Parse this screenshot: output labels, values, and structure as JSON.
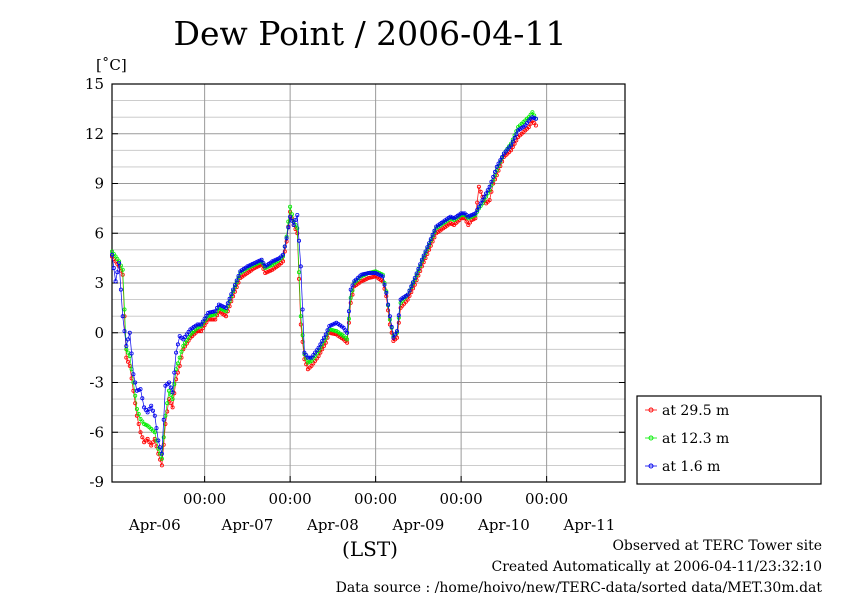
{
  "chart_data": {
    "type": "line",
    "title": "Dew Point / 2006-04-11",
    "ylabel": "[˚C]",
    "xlabel": "(LST)",
    "ylim": [
      -9,
      15
    ],
    "yticks": [
      -9,
      -6,
      -3,
      0,
      3,
      6,
      9,
      12,
      15
    ],
    "xlim": [
      0,
      144
    ],
    "x_unit": "hours since 2006-04-05 22:00 LST",
    "time_ticks": [
      {
        "x": 26,
        "label": "00:00"
      },
      {
        "x": 50,
        "label": "00:00"
      },
      {
        "x": 74,
        "label": "00:00"
      },
      {
        "x": 98,
        "label": "00:00"
      },
      {
        "x": 122,
        "label": "00:00"
      }
    ],
    "date_labels": [
      {
        "x": 12,
        "label": "Apr-06"
      },
      {
        "x": 38,
        "label": "Apr-07"
      },
      {
        "x": 62,
        "label": "Apr-08"
      },
      {
        "x": 86,
        "label": "Apr-09"
      },
      {
        "x": 110,
        "label": "Apr-10"
      },
      {
        "x": 134,
        "label": "Apr-11"
      }
    ],
    "grid": true,
    "legend_position": "right",
    "series": [
      {
        "name": "at 29.5 m",
        "color": "#ff0000",
        "points": [
          [
            0,
            4.6
          ],
          [
            2,
            4.0
          ],
          [
            3,
            3.5
          ],
          [
            4,
            -1.5
          ],
          [
            5,
            -2.0
          ],
          [
            6,
            -3.5
          ],
          [
            7,
            -5.0
          ],
          [
            8,
            -6.0
          ],
          [
            9,
            -6.6
          ],
          [
            10,
            -6.4
          ],
          [
            11,
            -6.8
          ],
          [
            12,
            -6.4
          ],
          [
            13,
            -7.3
          ],
          [
            14,
            -8.0
          ],
          [
            15,
            -5.5
          ],
          [
            16,
            -4.0
          ],
          [
            17,
            -4.5
          ],
          [
            18,
            -2.8
          ],
          [
            19,
            -2.0
          ],
          [
            20,
            -1.0
          ],
          [
            22,
            -0.3
          ],
          [
            24,
            0.1
          ],
          [
            25,
            0.1
          ],
          [
            27,
            0.8
          ],
          [
            29,
            0.8
          ],
          [
            30,
            1.3
          ],
          [
            32,
            1.0
          ],
          [
            34,
            2.2
          ],
          [
            36,
            3.3
          ],
          [
            38,
            3.6
          ],
          [
            40,
            3.9
          ],
          [
            42,
            4.1
          ],
          [
            43,
            3.6
          ],
          [
            45,
            3.8
          ],
          [
            47,
            4.1
          ],
          [
            48,
            4.3
          ],
          [
            49,
            5.5
          ],
          [
            50,
            7.3
          ],
          [
            51,
            6.5
          ],
          [
            52,
            6.0
          ],
          [
            53,
            0.5
          ],
          [
            54,
            -1.6
          ],
          [
            55,
            -2.2
          ],
          [
            56,
            -2.0
          ],
          [
            58,
            -1.4
          ],
          [
            60,
            -0.6
          ],
          [
            61,
            0.0
          ],
          [
            63,
            -0.1
          ],
          [
            65,
            -0.4
          ],
          [
            66,
            -0.6
          ],
          [
            67,
            1.8
          ],
          [
            68,
            2.8
          ],
          [
            70,
            3.1
          ],
          [
            72,
            3.3
          ],
          [
            74,
            3.4
          ],
          [
            76,
            3.1
          ],
          [
            77,
            2.2
          ],
          [
            78,
            0.5
          ],
          [
            79,
            -0.5
          ],
          [
            80,
            -0.3
          ],
          [
            81,
            1.5
          ],
          [
            83,
            2.0
          ],
          [
            85,
            2.9
          ],
          [
            87,
            4.0
          ],
          [
            89,
            5.0
          ],
          [
            91,
            6.0
          ],
          [
            93,
            6.3
          ],
          [
            95,
            6.6
          ],
          [
            96,
            6.5
          ],
          [
            98,
            6.9
          ],
          [
            99,
            6.9
          ],
          [
            100,
            6.5
          ],
          [
            101,
            6.8
          ],
          [
            102,
            6.9
          ],
          [
            103,
            8.8
          ],
          [
            104,
            8.2
          ],
          [
            105,
            7.8
          ],
          [
            106,
            8.0
          ],
          [
            107,
            9.0
          ],
          [
            108,
            9.5
          ],
          [
            110,
            10.6
          ],
          [
            112,
            11.0
          ],
          [
            114,
            11.8
          ],
          [
            116,
            12.2
          ],
          [
            117,
            12.4
          ],
          [
            118,
            12.8
          ],
          [
            119,
            12.5
          ]
        ]
      },
      {
        "name": "at 12.3 m",
        "color": "#00ee00",
        "points": [
          [
            0,
            4.9
          ],
          [
            2,
            4.3
          ],
          [
            3,
            3.8
          ],
          [
            4,
            -1.0
          ],
          [
            5,
            -1.4
          ],
          [
            6,
            -3.0
          ],
          [
            7,
            -4.6
          ],
          [
            8,
            -5.2
          ],
          [
            9,
            -5.5
          ],
          [
            10,
            -5.6
          ],
          [
            11,
            -5.8
          ],
          [
            12,
            -6.0
          ],
          [
            13,
            -7.0
          ],
          [
            14,
            -7.6
          ],
          [
            15,
            -5.0
          ],
          [
            16,
            -3.5
          ],
          [
            17,
            -4.0
          ],
          [
            18,
            -2.2
          ],
          [
            19,
            -1.5
          ],
          [
            20,
            -0.8
          ],
          [
            22,
            -0.1
          ],
          [
            24,
            0.3
          ],
          [
            25,
            0.4
          ],
          [
            27,
            1.0
          ],
          [
            29,
            1.1
          ],
          [
            30,
            1.5
          ],
          [
            32,
            1.3
          ],
          [
            34,
            2.5
          ],
          [
            36,
            3.6
          ],
          [
            38,
            3.9
          ],
          [
            40,
            4.1
          ],
          [
            42,
            4.3
          ],
          [
            43,
            3.9
          ],
          [
            45,
            4.1
          ],
          [
            47,
            4.4
          ],
          [
            48,
            4.6
          ],
          [
            49,
            5.8
          ],
          [
            50,
            7.6
          ],
          [
            51,
            6.7
          ],
          [
            52,
            6.3
          ],
          [
            53,
            1.0
          ],
          [
            54,
            -1.3
          ],
          [
            55,
            -1.8
          ],
          [
            56,
            -1.7
          ],
          [
            58,
            -1.1
          ],
          [
            60,
            -0.3
          ],
          [
            61,
            0.2
          ],
          [
            63,
            0.1
          ],
          [
            65,
            -0.2
          ],
          [
            66,
            -0.4
          ],
          [
            67,
            2.1
          ],
          [
            68,
            3.0
          ],
          [
            70,
            3.4
          ],
          [
            72,
            3.6
          ],
          [
            74,
            3.7
          ],
          [
            76,
            3.5
          ],
          [
            77,
            2.5
          ],
          [
            78,
            0.8
          ],
          [
            79,
            -0.2
          ],
          [
            80,
            0.0
          ],
          [
            81,
            1.8
          ],
          [
            83,
            2.3
          ],
          [
            85,
            3.2
          ],
          [
            87,
            4.3
          ],
          [
            89,
            5.3
          ],
          [
            91,
            6.3
          ],
          [
            93,
            6.6
          ],
          [
            95,
            6.9
          ],
          [
            96,
            6.8
          ],
          [
            98,
            7.1
          ],
          [
            99,
            7.1
          ],
          [
            100,
            6.9
          ],
          [
            101,
            7.0
          ],
          [
            102,
            7.1
          ],
          [
            103,
            7.5
          ],
          [
            104,
            7.8
          ],
          [
            105,
            8.2
          ],
          [
            106,
            8.6
          ],
          [
            107,
            9.2
          ],
          [
            108,
            9.8
          ],
          [
            110,
            10.8
          ],
          [
            112,
            11.4
          ],
          [
            114,
            12.4
          ],
          [
            116,
            12.8
          ],
          [
            117,
            13.0
          ],
          [
            118,
            13.3
          ],
          [
            119,
            12.9
          ]
        ]
      },
      {
        "name": "at 1.6 m",
        "color": "#0000ee",
        "points": [
          [
            0,
            4.7
          ],
          [
            1,
            3.1
          ],
          [
            2,
            4.2
          ],
          [
            3,
            1.0
          ],
          [
            4,
            -0.8
          ],
          [
            5,
            0.0
          ],
          [
            6,
            -2.5
          ],
          [
            7,
            -3.5
          ],
          [
            8,
            -3.4
          ],
          [
            9,
            -4.5
          ],
          [
            10,
            -4.8
          ],
          [
            11,
            -4.4
          ],
          [
            12,
            -5.0
          ],
          [
            13,
            -6.5
          ],
          [
            14,
            -7.3
          ],
          [
            15,
            -3.2
          ],
          [
            16,
            -3.0
          ],
          [
            17,
            -3.6
          ],
          [
            18,
            -1.2
          ],
          [
            19,
            -0.2
          ],
          [
            20,
            -0.4
          ],
          [
            22,
            0.2
          ],
          [
            24,
            0.5
          ],
          [
            25,
            0.5
          ],
          [
            27,
            1.2
          ],
          [
            29,
            1.3
          ],
          [
            30,
            1.7
          ],
          [
            32,
            1.5
          ],
          [
            34,
            2.6
          ],
          [
            36,
            3.7
          ],
          [
            38,
            4.0
          ],
          [
            40,
            4.2
          ],
          [
            42,
            4.4
          ],
          [
            43,
            4.0
          ],
          [
            45,
            4.3
          ],
          [
            47,
            4.5
          ],
          [
            48,
            4.7
          ],
          [
            49,
            5.7
          ],
          [
            50,
            7.0
          ],
          [
            51,
            6.5
          ],
          [
            52,
            7.1
          ],
          [
            53,
            4.0
          ],
          [
            54,
            -1.2
          ],
          [
            55,
            -1.5
          ],
          [
            56,
            -1.5
          ],
          [
            58,
            -0.9
          ],
          [
            60,
            -0.1
          ],
          [
            61,
            0.4
          ],
          [
            63,
            0.6
          ],
          [
            65,
            0.3
          ],
          [
            66,
            0.0
          ],
          [
            67,
            2.6
          ],
          [
            68,
            3.1
          ],
          [
            70,
            3.5
          ],
          [
            72,
            3.6
          ],
          [
            74,
            3.6
          ],
          [
            76,
            3.4
          ],
          [
            77,
            2.4
          ],
          [
            78,
            1.0
          ],
          [
            79,
            -0.3
          ],
          [
            80,
            0.1
          ],
          [
            81,
            2.0
          ],
          [
            83,
            2.3
          ],
          [
            85,
            3.3
          ],
          [
            87,
            4.4
          ],
          [
            89,
            5.4
          ],
          [
            91,
            6.4
          ],
          [
            93,
            6.7
          ],
          [
            95,
            7.0
          ],
          [
            96,
            6.9
          ],
          [
            98,
            7.2
          ],
          [
            99,
            7.2
          ],
          [
            100,
            7.0
          ],
          [
            101,
            7.1
          ],
          [
            102,
            7.2
          ],
          [
            103,
            7.6
          ],
          [
            104,
            8.0
          ],
          [
            105,
            8.4
          ],
          [
            106,
            8.8
          ],
          [
            107,
            9.4
          ],
          [
            108,
            10.0
          ],
          [
            110,
            10.8
          ],
          [
            112,
            11.3
          ],
          [
            114,
            12.2
          ],
          [
            116,
            12.5
          ],
          [
            117,
            12.8
          ],
          [
            118,
            13.0
          ],
          [
            119,
            12.9
          ]
        ]
      }
    ]
  },
  "footer": {
    "site": "Observed at TERC Tower site",
    "created": "Created Automatically at 2006-04-11/23:32:10",
    "source": "Data source : /home/hoivo/new/TERC-data/sorted  data/MET.30m.dat"
  }
}
